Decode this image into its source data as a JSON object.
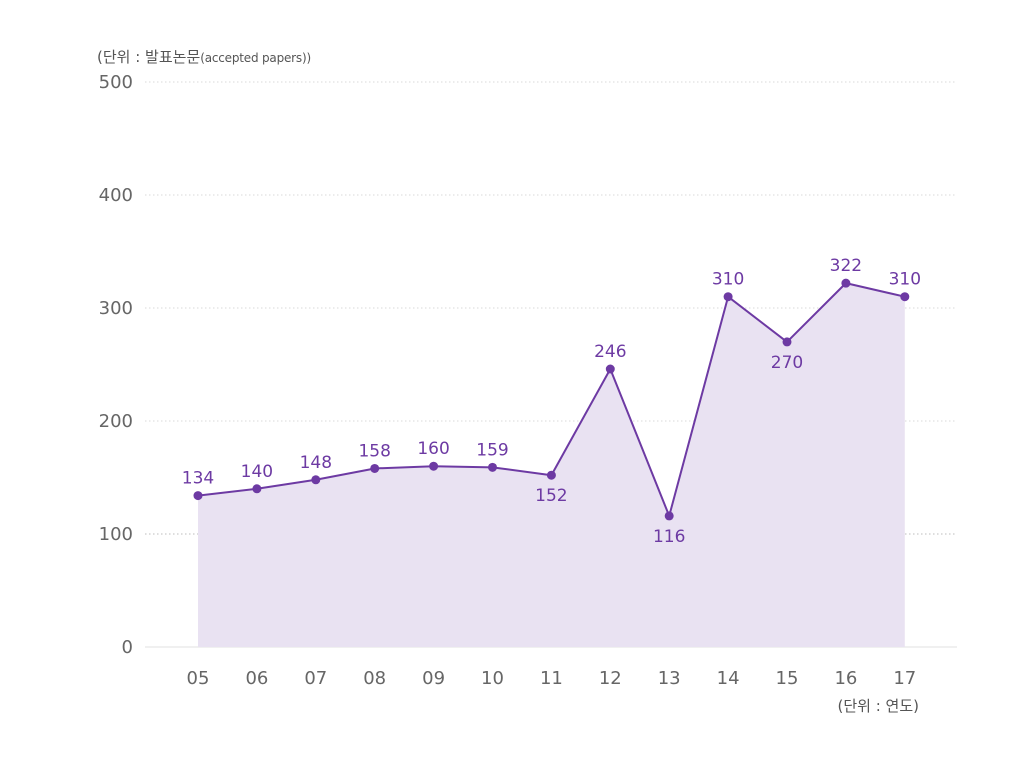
{
  "chart_data": {
    "type": "area",
    "y_unit_label": "(단위 : 발표논문",
    "y_unit_note": "(accepted papers))",
    "x_unit_label": "(단위 : 연도)",
    "categories": [
      "05",
      "06",
      "07",
      "08",
      "09",
      "10",
      "11",
      "12",
      "13",
      "14",
      "15",
      "16",
      "17"
    ],
    "series": [
      {
        "values": [
          134,
          140,
          148,
          158,
          160,
          159,
          152,
          246,
          116,
          310,
          270,
          322,
          310
        ]
      }
    ],
    "label_below": [
      false,
      false,
      false,
      false,
      false,
      false,
      true,
      false,
      true,
      false,
      true,
      false,
      false
    ],
    "y_ticks": [
      0,
      100,
      200,
      300,
      400,
      500
    ],
    "ylim": [
      0,
      500
    ],
    "grid": true,
    "colors": {
      "line": "#6d3aa3",
      "fill": "#e9e2f2",
      "grid": "#d9d9d9",
      "axis": "#e0e0e0"
    }
  }
}
